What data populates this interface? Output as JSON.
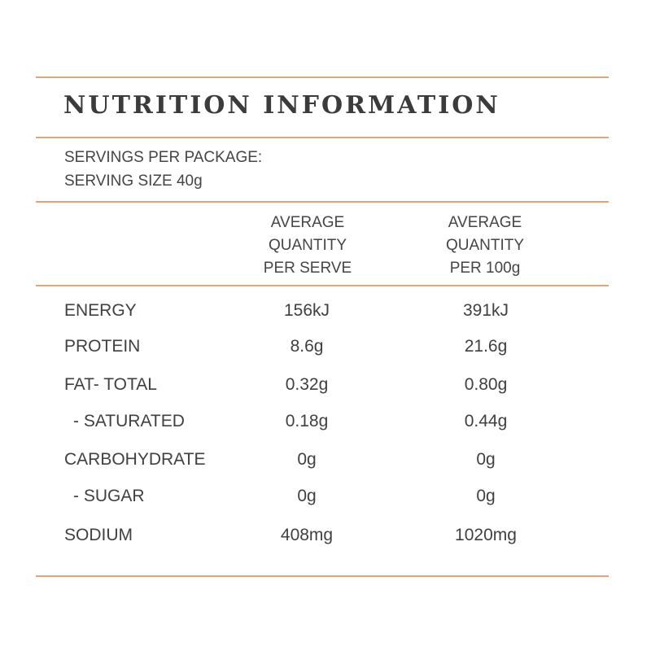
{
  "title": "NUTRITION INFORMATION",
  "servings_per_package": "SERVINGS PER PACKAGE:",
  "serving_size": "SERVING SIZE 40g",
  "columns": {
    "per_serve": [
      "AVERAGE",
      "QUANTITY",
      "PER SERVE"
    ],
    "per_100g": [
      "AVERAGE",
      "QUANTITY",
      "PER 100g"
    ]
  },
  "rows": [
    {
      "label": "ENERGY",
      "per_serve": "156kJ",
      "per_100g": "391kJ"
    },
    {
      "label": "PROTEIN",
      "per_serve": "8.6g",
      "per_100g": "21.6g"
    },
    {
      "label": "FAT- TOTAL",
      "per_serve": "0.32g",
      "per_100g": "0.80g"
    },
    {
      "label": "- SATURATED",
      "per_serve": "0.18g",
      "per_100g": "0.44g"
    },
    {
      "label": "CARBOHYDRATE",
      "per_serve": "0g",
      "per_100g": "0g"
    },
    {
      "label": "- SUGAR",
      "per_serve": "0g",
      "per_100g": "0g"
    },
    {
      "label": "SODIUM",
      "per_serve": "408mg",
      "per_100g": "1020mg"
    }
  ],
  "colors": {
    "rule": "#e3a47a",
    "text": "#404040"
  }
}
